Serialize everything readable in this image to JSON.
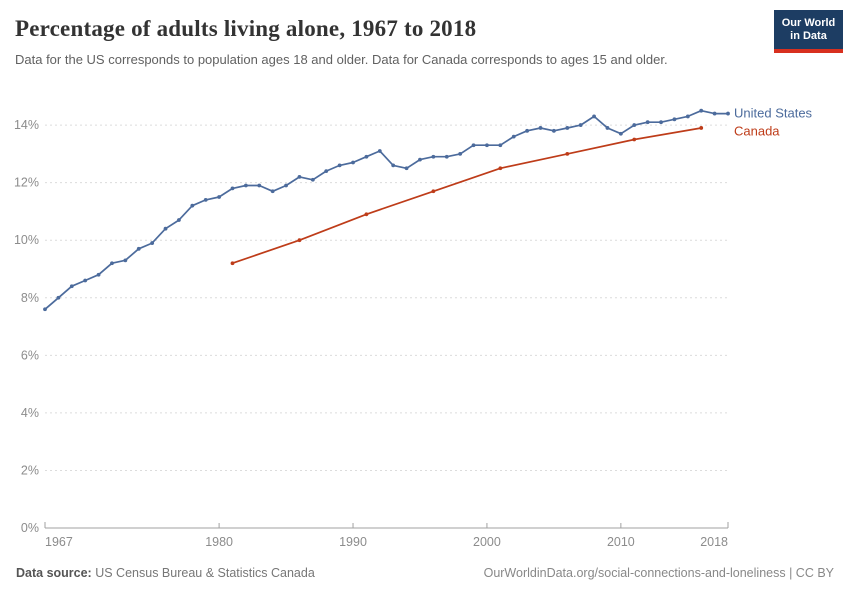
{
  "header": {
    "title": "Percentage of adults living alone, 1967 to 2018",
    "subtitle": "Data for the US corresponds to population ages 18 and older. Data for Canada corresponds to ages 15 and older.",
    "logo_line1": "Our World",
    "logo_line2": "in Data"
  },
  "chart_data": {
    "type": "line",
    "title": "Percentage of adults living alone, 1967 to 2018",
    "xlabel": "",
    "ylabel": "",
    "xlim": [
      1967,
      2018
    ],
    "ylim": [
      0,
      14.6
    ],
    "grid": "horizontal-dashed",
    "legend_position": "end-of-line",
    "x_ticks": [
      1967,
      1980,
      1990,
      2000,
      2010,
      2018
    ],
    "y_ticks": [
      0,
      2,
      4,
      6,
      8,
      10,
      12,
      14
    ],
    "y_tick_suffix": "%",
    "series": [
      {
        "name": "United States",
        "color": "#4C6B9C",
        "x": [
          1967,
          1968,
          1969,
          1970,
          1971,
          1972,
          1973,
          1974,
          1975,
          1976,
          1977,
          1978,
          1979,
          1980,
          1981,
          1982,
          1983,
          1984,
          1985,
          1986,
          1987,
          1988,
          1989,
          1990,
          1991,
          1992,
          1993,
          1994,
          1995,
          1996,
          1997,
          1998,
          1999,
          2000,
          2001,
          2002,
          2003,
          2004,
          2005,
          2006,
          2007,
          2008,
          2009,
          2010,
          2011,
          2012,
          2013,
          2014,
          2015,
          2016,
          2017,
          2018
        ],
        "y": [
          7.6,
          8.0,
          8.4,
          8.6,
          8.8,
          9.2,
          9.3,
          9.7,
          9.9,
          10.4,
          10.7,
          11.2,
          11.4,
          11.5,
          11.8,
          11.9,
          11.9,
          11.7,
          11.9,
          12.2,
          12.1,
          12.4,
          12.6,
          12.7,
          12.9,
          13.1,
          12.6,
          12.5,
          12.8,
          12.9,
          12.9,
          13.0,
          13.3,
          13.3,
          13.3,
          13.6,
          13.8,
          13.9,
          13.8,
          13.9,
          14.0,
          14.3,
          13.9,
          13.7,
          14.0,
          14.1,
          14.1,
          14.2,
          14.3,
          14.5,
          14.4,
          14.4
        ]
      },
      {
        "name": "Canada",
        "color": "#BE3C19",
        "x": [
          1981,
          1986,
          1991,
          1996,
          2001,
          2006,
          2011,
          2016
        ],
        "y": [
          9.2,
          10.0,
          10.9,
          11.7,
          12.5,
          13.0,
          13.5,
          13.9
        ]
      }
    ]
  },
  "footer": {
    "source_label": "Data source:",
    "source_value": "US Census Bureau & Statistics Canada",
    "credit": "OurWorldinData.org/social-connections-and-loneliness | CC BY"
  },
  "colors": {
    "united_states": "#4C6B9C",
    "canada": "#BE3C19",
    "grid": "#dcdcdc",
    "axis": "#a1a1a1",
    "tick_label": "#8c8c8c",
    "logo_bg": "#1d3d63",
    "logo_bar": "#d8301f"
  }
}
